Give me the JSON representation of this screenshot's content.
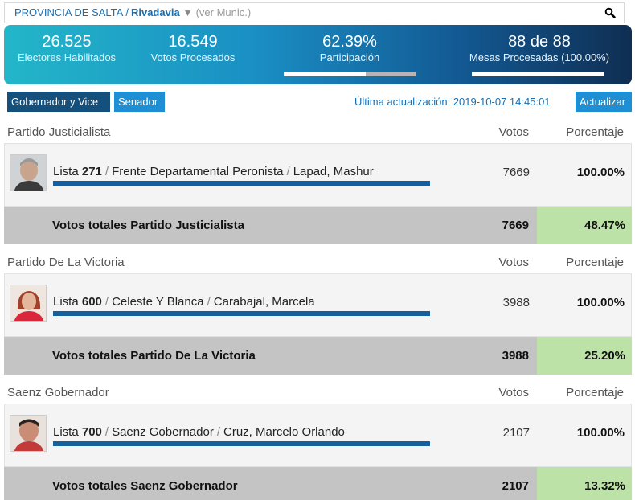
{
  "search": {
    "province": "PROVINCIA DE SALTA",
    "separator": "/",
    "municipality": "Rivadavia",
    "dropdown_icon": "triangle-down-icon",
    "ver_munic": "(ver Munic.)",
    "search_icon": "magnifier-icon"
  },
  "stats": {
    "electores_value": "26.525",
    "electores_label": "Electores Habilitados",
    "votos_value": "16.549",
    "votos_label": "Votos Procesados",
    "participacion_value": "62.39%",
    "participacion_label": "Participación",
    "participacion_fraction": 0.6239,
    "mesas_value": "88 de 88",
    "mesas_label": "Mesas Procesadas (100.00%)",
    "mesas_fraction": 1.0
  },
  "tabs": {
    "gobernador": "Gobernador y Vice",
    "senador": "Senador"
  },
  "update": {
    "text": "Última actualización: 2019-10-07 14:45:01",
    "button": "Actualizar"
  },
  "columns": {
    "votos": "Votos",
    "porcentaje": "Porcentaje"
  },
  "parties": [
    {
      "name": "Partido Justicialista",
      "lista_prefix": "Lista",
      "lista_num": "271",
      "lista_name": "Frente Departamental Peronista",
      "candidate": "Lapad, Mashur",
      "votes": "7669",
      "pct": "100.00%",
      "total_label": "Votos totales Partido Justicialista",
      "total_votes": "7669",
      "total_pct": "48.47%"
    },
    {
      "name": "Partido De La Victoria",
      "lista_prefix": "Lista",
      "lista_num": "600",
      "lista_name": "Celeste Y Blanca",
      "candidate": "Carabajal, Marcela",
      "votes": "3988",
      "pct": "100.00%",
      "total_label": "Votos totales Partido De La Victoria",
      "total_votes": "3988",
      "total_pct": "25.20%"
    },
    {
      "name": "Saenz Gobernador",
      "lista_prefix": "Lista",
      "lista_num": "700",
      "lista_name": "Saenz Gobernador",
      "candidate": "Cruz, Marcelo Orlando",
      "votes": "2107",
      "pct": "100.00%",
      "total_label": "Votos totales Saenz Gobernador",
      "total_votes": "2107",
      "total_pct": "13.32%"
    }
  ],
  "colors": {
    "accent_dark": "#15507d",
    "accent_light": "#1e8fd4",
    "pct_highlight": "#bde2a8"
  }
}
